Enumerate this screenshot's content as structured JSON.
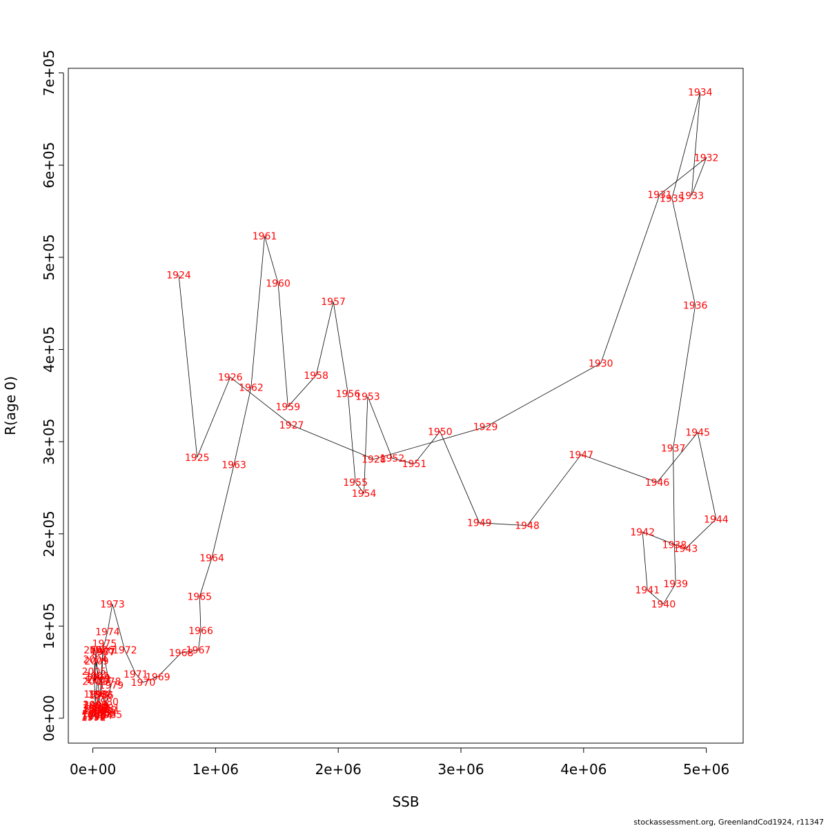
{
  "chart_data": {
    "type": "line",
    "title": "",
    "xlabel": "SSB",
    "ylabel": "R(age 0)",
    "xlim": [
      -200000,
      5300000
    ],
    "ylim": [
      -27000,
      705000
    ],
    "x_ticks": [
      {
        "value": 0,
        "label": "0e+00"
      },
      {
        "value": 1000000,
        "label": "1e+06"
      },
      {
        "value": 2000000,
        "label": "2e+06"
      },
      {
        "value": 3000000,
        "label": "3e+06"
      },
      {
        "value": 4000000,
        "label": "4e+06"
      },
      {
        "value": 5000000,
        "label": "5e+06"
      }
    ],
    "y_ticks": [
      {
        "value": 0,
        "label": "0e+00"
      },
      {
        "value": 100000,
        "label": "1e+05"
      },
      {
        "value": 200000,
        "label": "2e+05"
      },
      {
        "value": 300000,
        "label": "3e+05"
      },
      {
        "value": 400000,
        "label": "4e+05"
      },
      {
        "value": 500000,
        "label": "5e+05"
      },
      {
        "value": 600000,
        "label": "6e+05"
      },
      {
        "value": 700000,
        "label": "7e+05"
      }
    ],
    "grid": false,
    "legend": "none",
    "line_color": "#000000",
    "label_color": "#ff0000",
    "points": [
      {
        "label": "1924",
        "x": 700000,
        "y": 481000
      },
      {
        "label": "1925",
        "x": 850000,
        "y": 283000
      },
      {
        "label": "1926",
        "x": 1120000,
        "y": 370000
      },
      {
        "label": "1927",
        "x": 1620000,
        "y": 318000
      },
      {
        "label": "1928",
        "x": 2290000,
        "y": 281000
      },
      {
        "label": "1929",
        "x": 3200000,
        "y": 316000
      },
      {
        "label": "1930",
        "x": 4140000,
        "y": 385000
      },
      {
        "label": "1931",
        "x": 4620000,
        "y": 568000
      },
      {
        "label": "1932",
        "x": 5000000,
        "y": 608000
      },
      {
        "label": "1933",
        "x": 4880000,
        "y": 567000
      },
      {
        "label": "1934",
        "x": 4950000,
        "y": 679000
      },
      {
        "label": "1935",
        "x": 4720000,
        "y": 564000
      },
      {
        "label": "1936",
        "x": 4910000,
        "y": 448000
      },
      {
        "label": "1937",
        "x": 4730000,
        "y": 293000
      },
      {
        "label": "1938",
        "x": 4740000,
        "y": 188000
      },
      {
        "label": "1939",
        "x": 4750000,
        "y": 146000
      },
      {
        "label": "1940",
        "x": 4650000,
        "y": 124000
      },
      {
        "label": "1941",
        "x": 4520000,
        "y": 139000
      },
      {
        "label": "1942",
        "x": 4480000,
        "y": 202000
      },
      {
        "label": "1943",
        "x": 4830000,
        "y": 184000
      },
      {
        "label": "1944",
        "x": 5080000,
        "y": 216000
      },
      {
        "label": "1945",
        "x": 4930000,
        "y": 310000
      },
      {
        "label": "1946",
        "x": 4600000,
        "y": 256000
      },
      {
        "label": "1947",
        "x": 3980000,
        "y": 286000
      },
      {
        "label": "1948",
        "x": 3540000,
        "y": 209000
      },
      {
        "label": "1949",
        "x": 3150000,
        "y": 212000
      },
      {
        "label": "1950",
        "x": 2830000,
        "y": 311000
      },
      {
        "label": "1951",
        "x": 2620000,
        "y": 276000
      },
      {
        "label": "1952",
        "x": 2440000,
        "y": 282000
      },
      {
        "label": "1953",
        "x": 2240000,
        "y": 349000
      },
      {
        "label": "1954",
        "x": 2210000,
        "y": 244000
      },
      {
        "label": "1955",
        "x": 2140000,
        "y": 256000
      },
      {
        "label": "1956",
        "x": 2080000,
        "y": 352000
      },
      {
        "label": "1957",
        "x": 1960000,
        "y": 452000
      },
      {
        "label": "1958",
        "x": 1820000,
        "y": 372000
      },
      {
        "label": "1959",
        "x": 1590000,
        "y": 338000
      },
      {
        "label": "1960",
        "x": 1510000,
        "y": 472000
      },
      {
        "label": "1961",
        "x": 1400000,
        "y": 523000
      },
      {
        "label": "1962",
        "x": 1290000,
        "y": 359000
      },
      {
        "label": "1963",
        "x": 1150000,
        "y": 275000
      },
      {
        "label": "1964",
        "x": 970000,
        "y": 174000
      },
      {
        "label": "1965",
        "x": 870000,
        "y": 132000
      },
      {
        "label": "1966",
        "x": 880000,
        "y": 95000
      },
      {
        "label": "1967",
        "x": 860000,
        "y": 74000
      },
      {
        "label": "1968",
        "x": 720000,
        "y": 71000
      },
      {
        "label": "1969",
        "x": 530000,
        "y": 45000
      },
      {
        "label": "1970",
        "x": 410000,
        "y": 39000
      },
      {
        "label": "1971",
        "x": 350000,
        "y": 48000
      },
      {
        "label": "1972",
        "x": 260000,
        "y": 74000
      },
      {
        "label": "1973",
        "x": 160000,
        "y": 124000
      },
      {
        "label": "1974",
        "x": 120000,
        "y": 94000
      },
      {
        "label": "1975",
        "x": 95000,
        "y": 81000
      },
      {
        "label": "1976",
        "x": 70000,
        "y": 74000
      },
      {
        "label": "1977",
        "x": 85000,
        "y": 72000
      },
      {
        "label": "1978",
        "x": 130000,
        "y": 40000
      },
      {
        "label": "1979",
        "x": 150000,
        "y": 36000
      },
      {
        "label": "1980",
        "x": 110000,
        "y": 18000
      },
      {
        "label": "1981",
        "x": 120000,
        "y": 11000
      },
      {
        "label": "1982",
        "x": 100000,
        "y": 9000
      },
      {
        "label": "1983",
        "x": 90000,
        "y": 6000
      },
      {
        "label": "1984",
        "x": 60000,
        "y": 3000
      },
      {
        "label": "1985",
        "x": 140000,
        "y": 4000
      },
      {
        "label": "1986",
        "x": 70000,
        "y": 25000
      },
      {
        "label": "1987",
        "x": 80000,
        "y": 72000
      },
      {
        "label": "1988",
        "x": 60000,
        "y": 26000
      },
      {
        "label": "1989",
        "x": 30000,
        "y": 13000
      },
      {
        "label": "1990",
        "x": 10000,
        "y": 4000
      },
      {
        "label": "1991",
        "x": 5000,
        "y": 1000
      },
      {
        "label": "1992",
        "x": 6000,
        "y": 2000
      },
      {
        "label": "1993",
        "x": 8000,
        "y": 3000
      },
      {
        "label": "1994",
        "x": 12000,
        "y": 5000
      },
      {
        "label": "1995",
        "x": 20000,
        "y": 8000
      },
      {
        "label": "1996",
        "x": 15000,
        "y": 11000
      },
      {
        "label": "1997",
        "x": 18000,
        "y": 14000
      },
      {
        "label": "1998",
        "x": 25000,
        "y": 26000
      },
      {
        "label": "1999",
        "x": 40000,
        "y": 44000
      },
      {
        "label": "2000",
        "x": 25000,
        "y": 74000
      },
      {
        "label": "2001",
        "x": 15000,
        "y": 40000
      },
      {
        "label": "2002",
        "x": 30000,
        "y": 46000
      },
      {
        "label": "2003",
        "x": 50000,
        "y": 42000
      },
      {
        "label": "2004",
        "x": 20000,
        "y": 64000
      },
      {
        "label": "2005",
        "x": 10000,
        "y": 51000
      },
      {
        "label": "2006",
        "x": 20000,
        "y": 15000
      },
      {
        "label": "2007",
        "x": 40000,
        "y": 10000
      },
      {
        "label": "2008",
        "x": 60000,
        "y": 8000
      },
      {
        "label": "2009",
        "x": 30000,
        "y": 62000
      }
    ]
  },
  "credit": "stockassessment.org, GreenlandCod1924, r11347"
}
